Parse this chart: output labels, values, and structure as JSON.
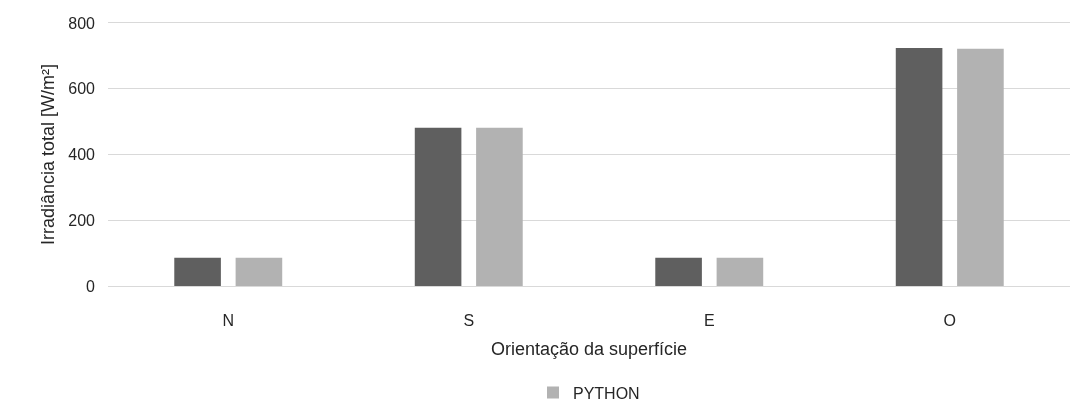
{
  "chart_data": {
    "type": "bar",
    "xlabel": "Orientação da superfície",
    "ylabel": "Irradiância total [W/m²]",
    "categories": [
      "N",
      "S",
      "E",
      "O"
    ],
    "series": [
      {
        "color": "#5f5f5f",
        "values": [
          86,
          481,
          86,
          724
        ]
      },
      {
        "name": "PYTHON",
        "color": "#b2b2b2",
        "values": [
          86,
          481,
          86,
          722
        ]
      }
    ],
    "ylim": [
      0,
      800
    ],
    "yticks": [
      0,
      200,
      400,
      600,
      800
    ],
    "grid": "y",
    "legend": "bottom"
  }
}
